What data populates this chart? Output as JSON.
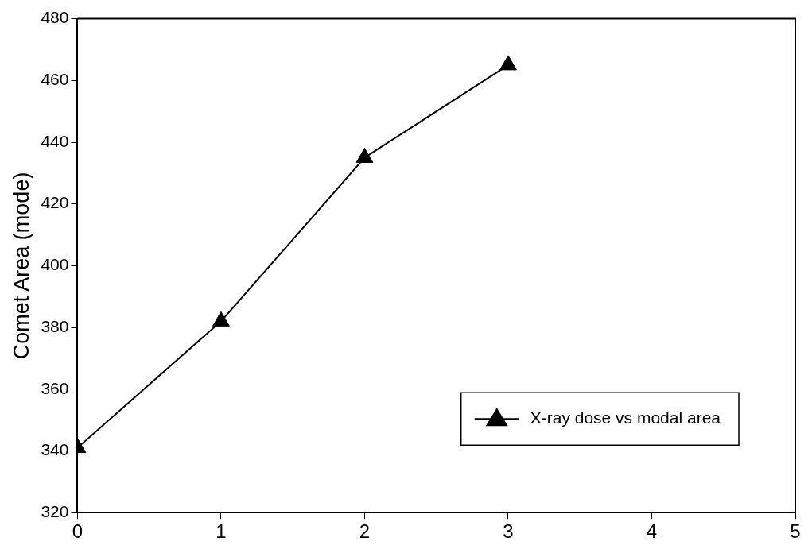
{
  "chart_data": {
    "type": "line",
    "ylabel": "Comet Area (mode)",
    "x": [
      0,
      1,
      2,
      3
    ],
    "series": [
      {
        "name": "X-ray dose vs modal area",
        "color": "#000000",
        "values": [
          341,
          382,
          435,
          465
        ]
      }
    ],
    "xlim": [
      0,
      5
    ],
    "xticks": [
      0,
      1,
      2,
      3,
      4,
      5
    ],
    "ylim": [
      320,
      480
    ],
    "yticks": [
      320,
      340,
      360,
      380,
      400,
      420,
      440,
      460,
      480
    ],
    "marker": "triangle",
    "line_style": "solid",
    "legend": "bottom right",
    "grid": false
  }
}
